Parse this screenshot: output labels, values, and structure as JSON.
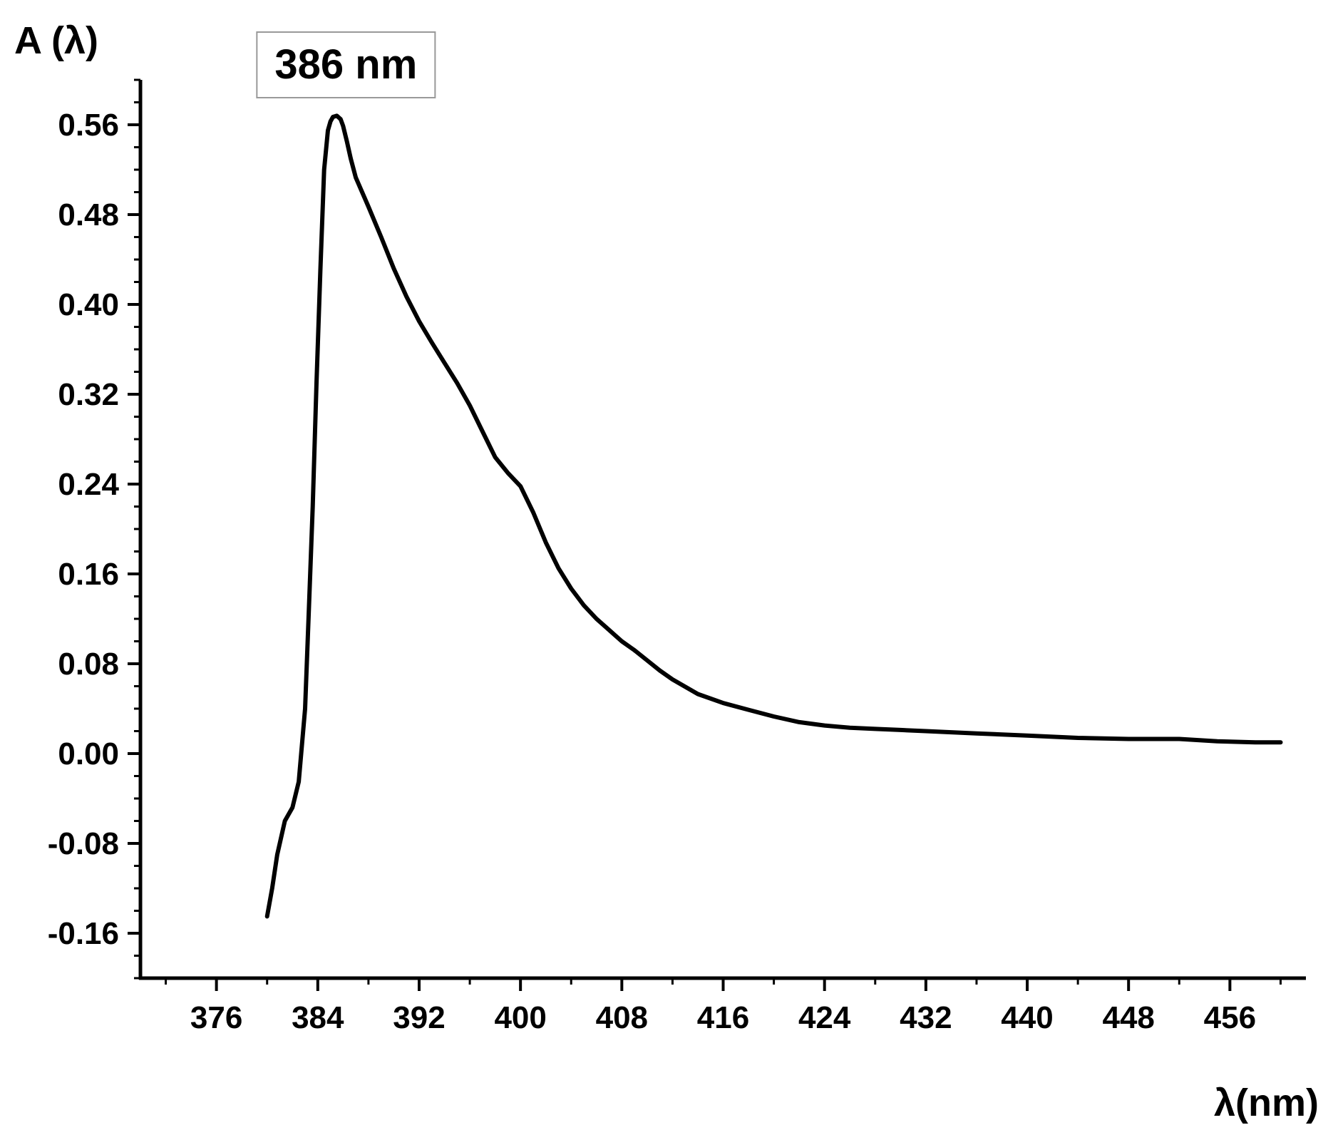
{
  "chart_data": {
    "type": "line",
    "title": "",
    "ylabel": "A (λ)",
    "xlabel": "λ(nm)",
    "xlim": [
      370,
      462
    ],
    "ylim": [
      -0.2,
      0.6
    ],
    "grid": false,
    "x_ticks": [
      376,
      384,
      392,
      400,
      408,
      416,
      424,
      432,
      440,
      448,
      456
    ],
    "y_ticks": [
      -0.16,
      -0.08,
      0.0,
      0.08,
      0.16,
      0.24,
      0.32,
      0.4,
      0.48,
      0.56
    ],
    "x_tick_labels": [
      "376",
      "384",
      "392",
      "400",
      "408",
      "416",
      "424",
      "432",
      "440",
      "448",
      "456"
    ],
    "y_tick_labels": [
      "-0.16",
      "-0.08",
      "0.00",
      "0.08",
      "0.16",
      "0.24",
      "0.32",
      "0.40",
      "0.48",
      "0.56"
    ],
    "annotations": [
      {
        "text": "386 nm",
        "x": 386,
        "y": 0.57
      }
    ],
    "series": [
      {
        "color": "#000000",
        "x": [
          380.0,
          380.4,
          380.8,
          381.4,
          382.0,
          382.5,
          383.0,
          383.3,
          383.6,
          383.9,
          384.2,
          384.5,
          384.8,
          385.0,
          385.2,
          385.5,
          385.8,
          386.0,
          386.3,
          386.6,
          387.0,
          387.5,
          388.0,
          389.0,
          390.0,
          391.0,
          392.0,
          393.0,
          394.0,
          395.0,
          396.0,
          397.0,
          398.0,
          399.0,
          400.0,
          401.0,
          402.0,
          403.0,
          404.0,
          405.0,
          406.0,
          407.0,
          408.0,
          409.0,
          410.0,
          411.0,
          412.0,
          414.0,
          416.0,
          418.0,
          420.0,
          422.0,
          424.0,
          426.0,
          428.0,
          430.0,
          432.0,
          434.0,
          436.0,
          440.0,
          444.0,
          448.0,
          452.0,
          455.0,
          458.0,
          460.0
        ],
        "y": [
          -0.145,
          -0.12,
          -0.09,
          -0.06,
          -0.048,
          -0.025,
          0.04,
          0.13,
          0.22,
          0.33,
          0.43,
          0.52,
          0.555,
          0.563,
          0.567,
          0.568,
          0.565,
          0.559,
          0.545,
          0.53,
          0.513,
          0.5,
          0.487,
          0.46,
          0.432,
          0.407,
          0.385,
          0.366,
          0.348,
          0.33,
          0.31,
          0.287,
          0.264,
          0.25,
          0.238,
          0.215,
          0.188,
          0.165,
          0.147,
          0.132,
          0.12,
          0.11,
          0.1,
          0.092,
          0.083,
          0.074,
          0.066,
          0.053,
          0.045,
          0.039,
          0.033,
          0.028,
          0.025,
          0.023,
          0.022,
          0.021,
          0.02,
          0.019,
          0.018,
          0.016,
          0.014,
          0.013,
          0.013,
          0.011,
          0.01,
          0.01
        ]
      }
    ]
  }
}
